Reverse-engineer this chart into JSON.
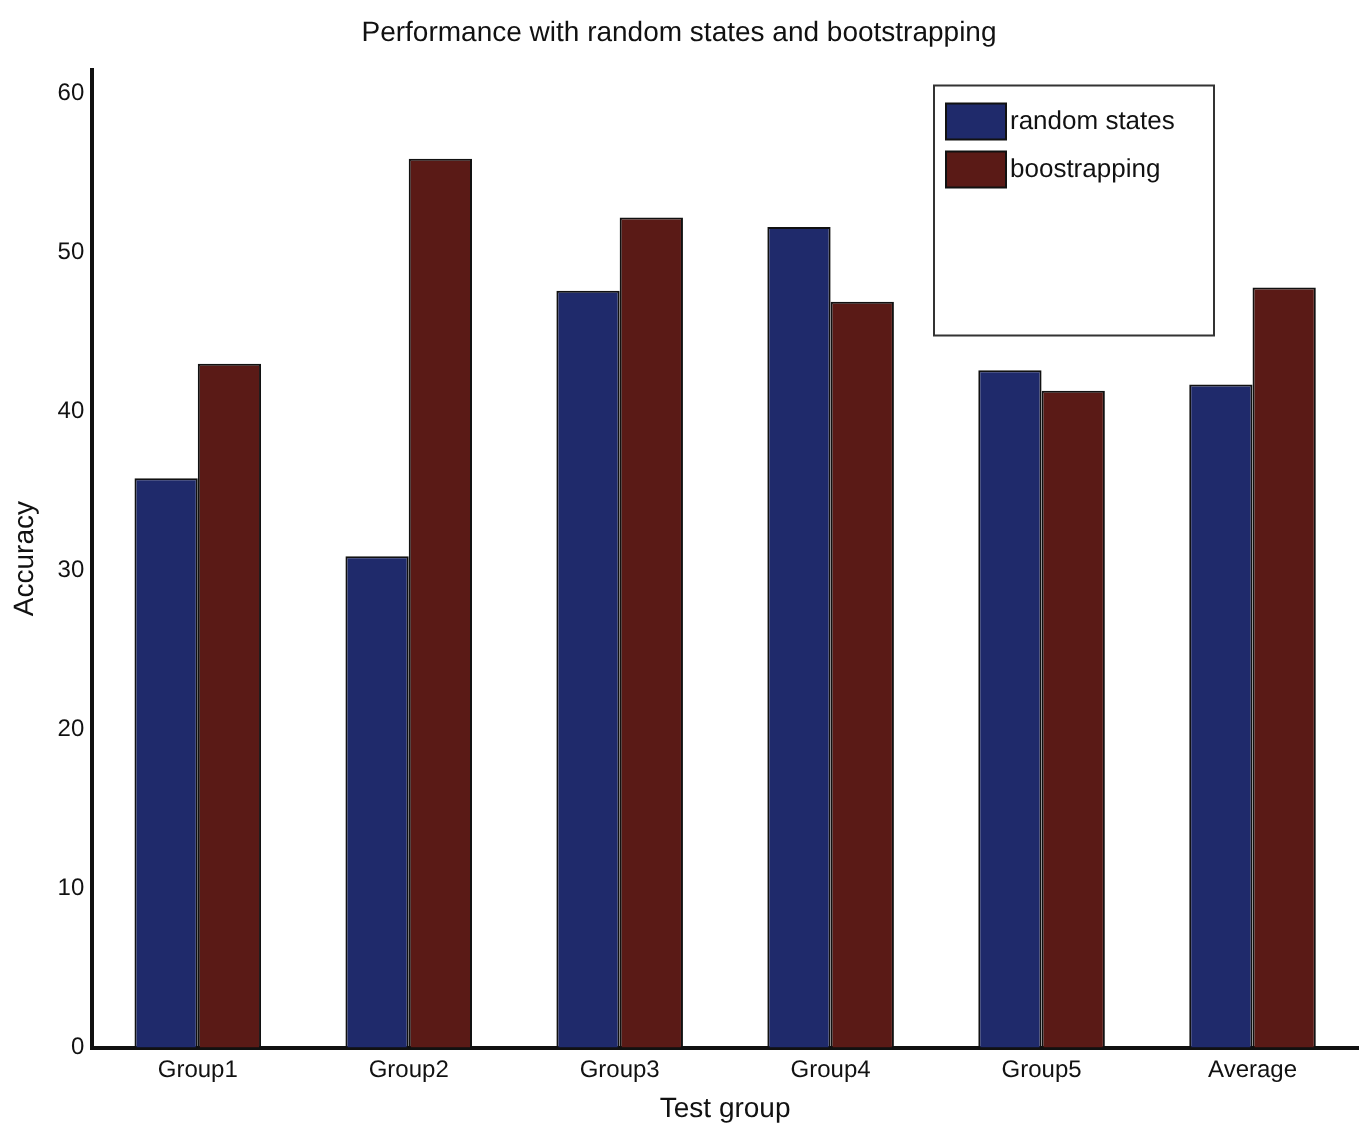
{
  "chart_data": {
    "type": "bar",
    "title": "Performance with random states and bootstrapping",
    "xlabel": "Test group",
    "ylabel": "Accuracy",
    "categories": [
      "Group1",
      "Group2",
      "Group3",
      "Group4",
      "Group5",
      "Average"
    ],
    "series": [
      {
        "name": "random states",
        "color": "#1f2a6b",
        "values": [
          35.8,
          30.9,
          47.6,
          51.6,
          42.6,
          41.7
        ]
      },
      {
        "name": "boostrapping",
        "color": "#5a1a16",
        "values": [
          43.0,
          55.9,
          52.2,
          46.9,
          41.3,
          47.8
        ]
      }
    ],
    "ylim": [
      0,
      61.5
    ],
    "yticks": [
      0,
      10,
      20,
      30,
      40,
      50,
      60
    ],
    "grid": false,
    "legend": "top right"
  }
}
